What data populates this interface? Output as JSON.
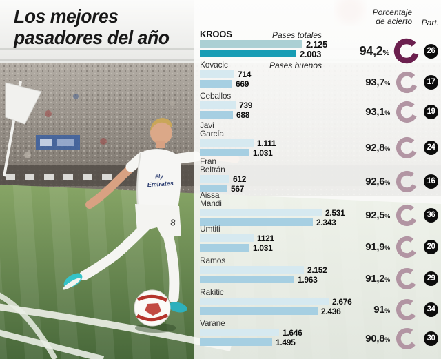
{
  "title": {
    "line1": "Los mejores",
    "line2": "pasadores del año"
  },
  "header": {
    "pct_line1": "Porcentaje",
    "pct_line2": "de acierto",
    "part": "Part."
  },
  "legend": {
    "total": "Pases totales",
    "good": "Pases buenos"
  },
  "percent_sign": "%",
  "photo": {
    "shirt_line1": "Fly",
    "shirt_line2": "Emirates",
    "shorts_number": "8"
  },
  "colors": {
    "bar_total": "#d6e9f0",
    "bar_good": "#a6cfe2",
    "featured_bar_total": "#abd0d4",
    "featured_bar_good": "#189db5",
    "ring": "#b295a3",
    "ring_featured": "#6b1f4e",
    "badge": "#0c0c0c"
  },
  "players": [
    {
      "name": "KROOS",
      "name2": "",
      "total": 2125,
      "good": 2003,
      "total_label": "2.125",
      "good_label": "2.003",
      "pct": 94.2,
      "pct_label": "94,2",
      "part": "26",
      "featured": true
    },
    {
      "name": "Kovacic",
      "name2": "",
      "total": 714,
      "good": 669,
      "total_label": "714",
      "good_label": "669",
      "pct": 93.7,
      "pct_label": "93,7",
      "part": "17"
    },
    {
      "name": "Ceballos",
      "name2": "",
      "total": 739,
      "good": 688,
      "total_label": "739",
      "good_label": "688",
      "pct": 93.1,
      "pct_label": "93,1",
      "part": "19"
    },
    {
      "name": "Javi",
      "name2": "García",
      "total": 1111,
      "good": 1031,
      "total_label": "1.111",
      "good_label": "1.031",
      "pct": 92.8,
      "pct_label": "92,8",
      "part": "24"
    },
    {
      "name": "Fran",
      "name2": "Beltrán",
      "total": 612,
      "good": 567,
      "total_label": "612",
      "good_label": "567",
      "pct": 92.6,
      "pct_label": "92,6",
      "part": "16"
    },
    {
      "name": "Aissa",
      "name2": "Mandi",
      "total": 2531,
      "good": 2343,
      "total_label": "2.531",
      "good_label": "2.343",
      "pct": 92.5,
      "pct_label": "92,5",
      "part": "36"
    },
    {
      "name": "Umtiti",
      "name2": "",
      "total": 1121,
      "good": 1031,
      "total_label": "1121",
      "good_label": "1.031",
      "pct": 91.9,
      "pct_label": "91,9",
      "part": "20"
    },
    {
      "name": "Ramos",
      "name2": "",
      "total": 2152,
      "good": 1963,
      "total_label": "2.152",
      "good_label": "1.963",
      "pct": 91.2,
      "pct_label": "91,2",
      "part": "29"
    },
    {
      "name": "Rakitic",
      "name2": "",
      "total": 2676,
      "good": 2436,
      "total_label": "2.676",
      "good_label": "2.436",
      "pct": 91.0,
      "pct_label": "91",
      "part": "34"
    },
    {
      "name": "Varane",
      "name2": "",
      "total": 1646,
      "good": 1495,
      "total_label": "1.646",
      "good_label": "1.495",
      "pct": 90.8,
      "pct_label": "90,8",
      "part": "30"
    }
  ],
  "chart_data": {
    "type": "bar",
    "orientation": "horizontal",
    "title": "Los mejores pasadores del año",
    "categories": [
      "Kroos",
      "Kovacic",
      "Ceballos",
      "Javi García",
      "Fran Beltrán",
      "Aissa Mandi",
      "Umtiti",
      "Ramos",
      "Rakitic",
      "Varane"
    ],
    "series": [
      {
        "name": "Pases totales",
        "values": [
          2125,
          714,
          739,
          1111,
          612,
          2531,
          1121,
          2152,
          2676,
          1646
        ]
      },
      {
        "name": "Pases buenos",
        "values": [
          2003,
          669,
          688,
          1031,
          567,
          2343,
          1031,
          1963,
          2436,
          1495
        ]
      },
      {
        "name": "Porcentaje de acierto (%)",
        "values": [
          94.2,
          93.7,
          93.1,
          92.8,
          92.6,
          92.5,
          91.9,
          91.2,
          91,
          90.8
        ]
      },
      {
        "name": "Part. (partidos)",
        "values": [
          26,
          17,
          19,
          24,
          16,
          36,
          20,
          29,
          34,
          30
        ]
      }
    ],
    "legend_position": "inline-first-row",
    "grid": false,
    "value_labels": true
  }
}
